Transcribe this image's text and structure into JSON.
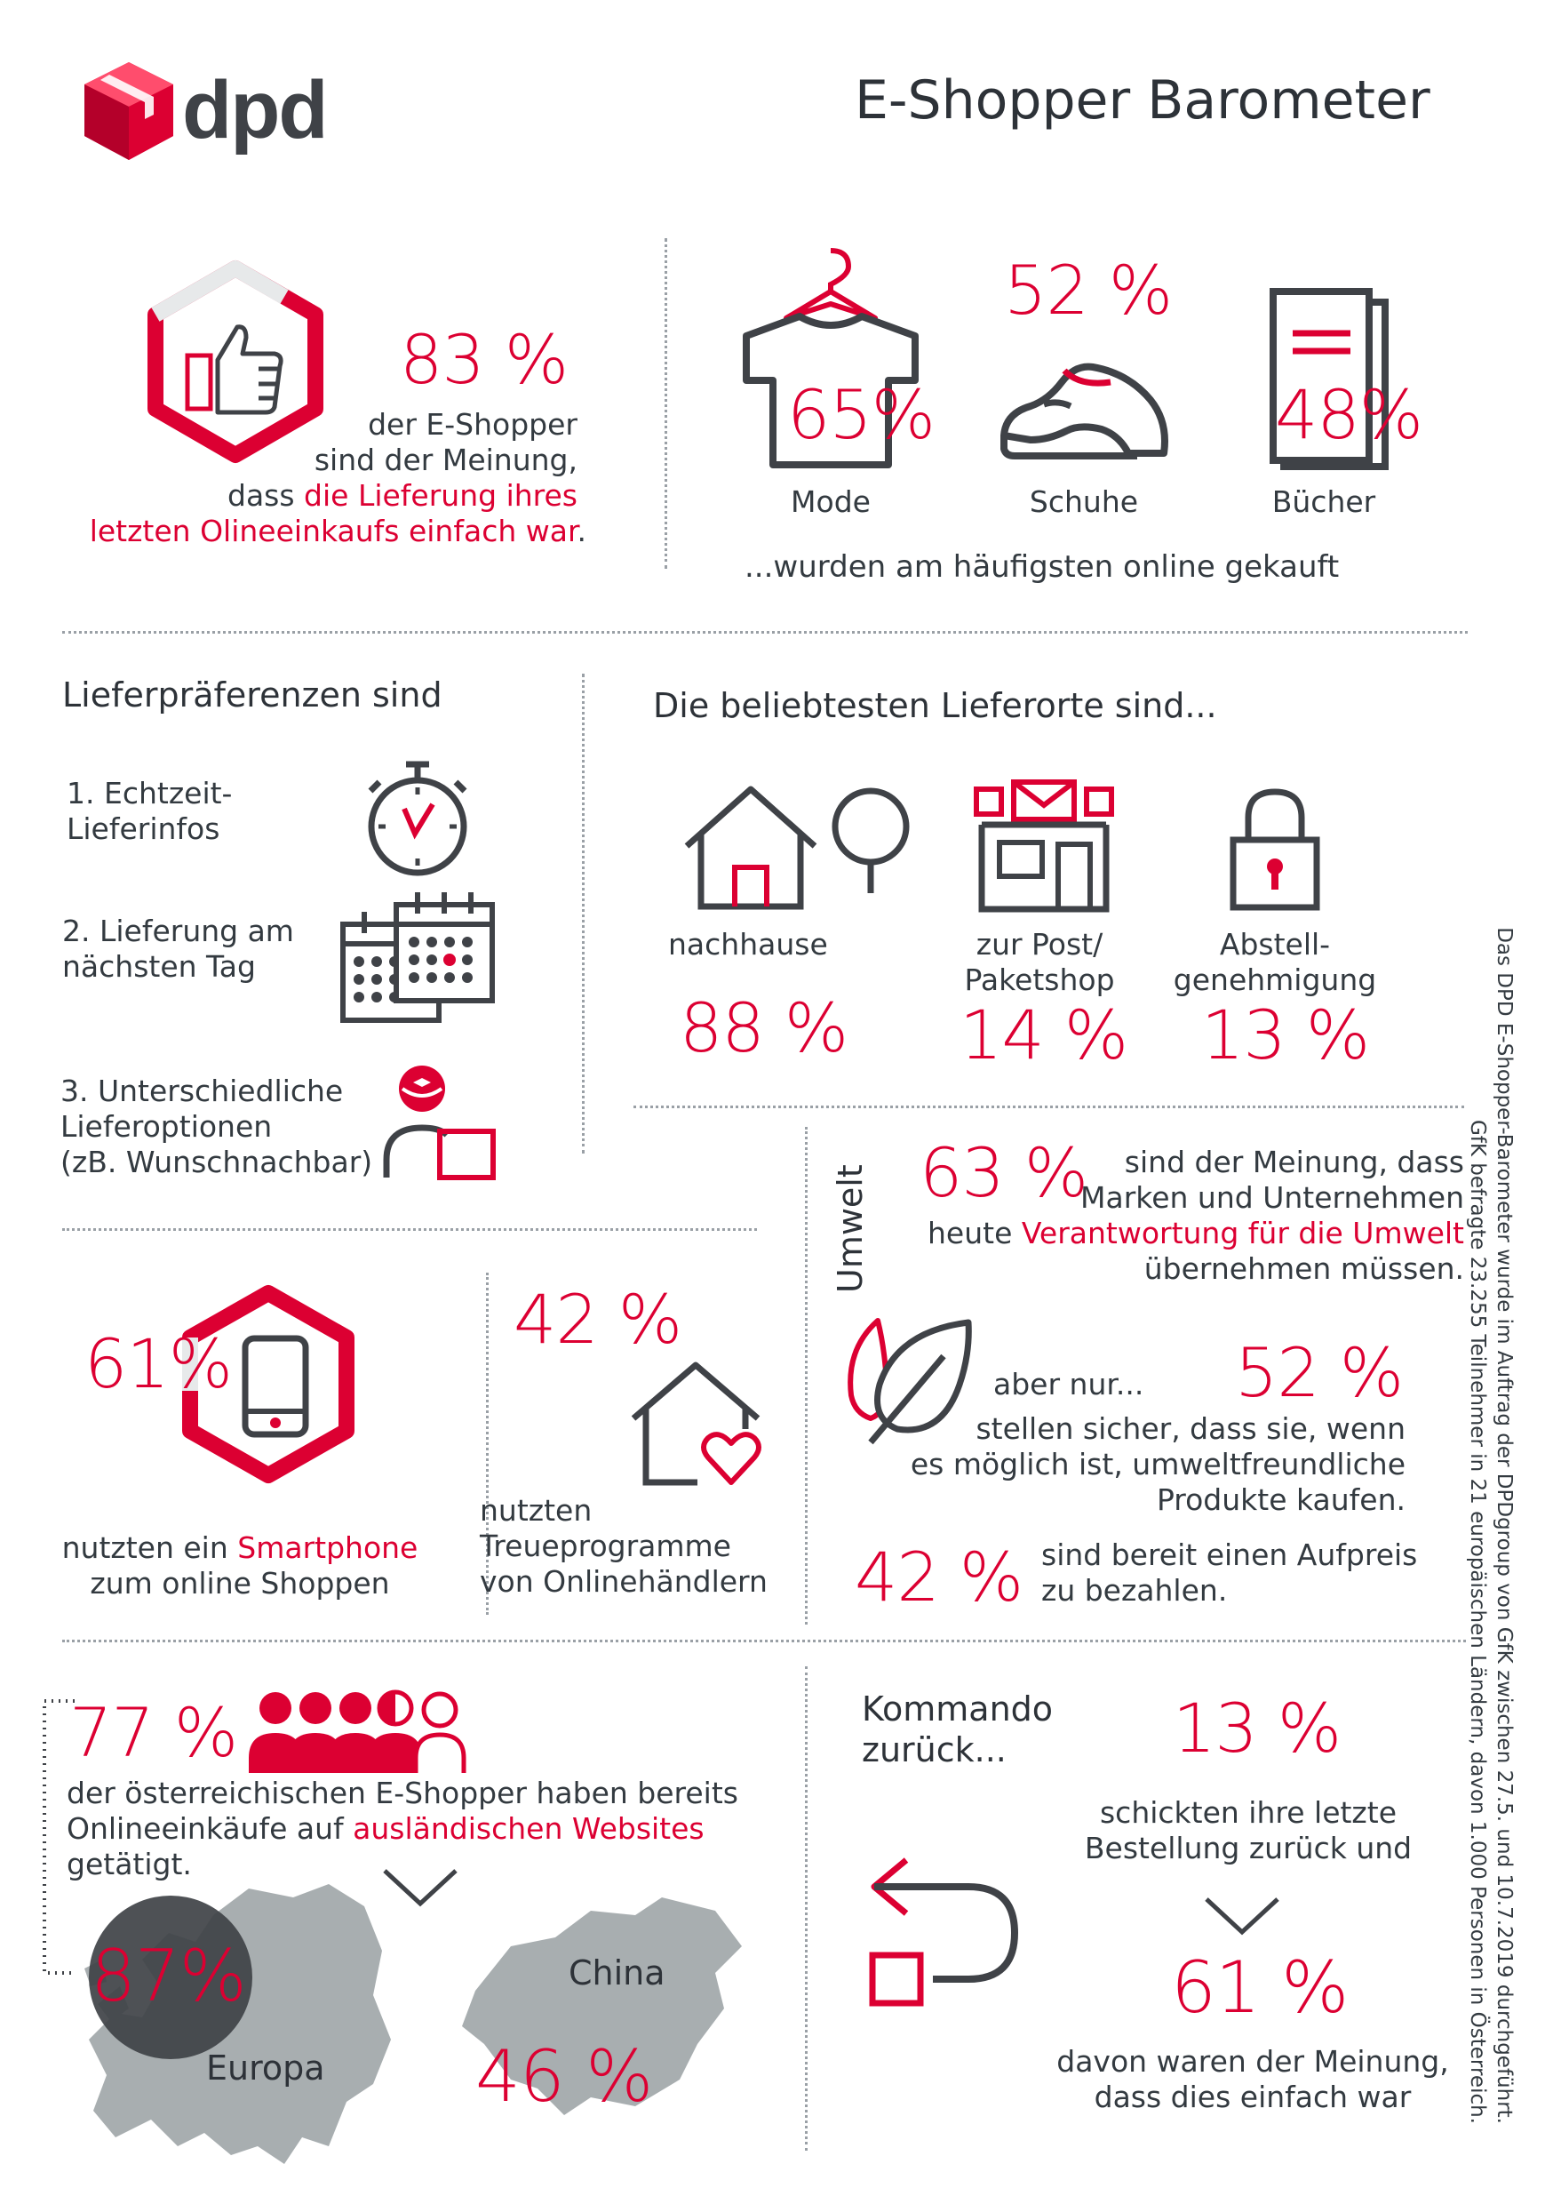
{
  "brand": {
    "logo_text": "dpd",
    "title": "E-Shopper Barometer"
  },
  "colors": {
    "accent": "#dc0032",
    "text": "#333a40",
    "map": "#a8aeb0",
    "dark": "#3f4247"
  },
  "delivery_easy": {
    "percent": "83 %",
    "line1": "der E-Shopper",
    "line2": "sind der Meinung,",
    "line3_pre": "dass ",
    "line3_red": "die Lieferung ihres",
    "line4_red": "letzten Olineeinkaufs einfach war",
    "line4_post": "."
  },
  "categories": {
    "items": [
      {
        "label": "Mode",
        "percent": "65%"
      },
      {
        "label": "Schuhe",
        "percent": "52 %"
      },
      {
        "label": "Bücher",
        "percent": "48%"
      }
    ],
    "footer": "...wurden am häufigsten online gekauft"
  },
  "preferences": {
    "title": "Lieferpräferenzen sind",
    "item1_line1": "1. Echtzeit-",
    "item1_line2": "Lieferinfos",
    "item2_line1": "2. Lieferung am",
    "item2_line2": "nächsten Tag",
    "item3_line1": "3. Unterschiedliche",
    "item3_line2": "Lieferoptionen",
    "item3_line3": "(zB. Wunschnachbar)"
  },
  "places": {
    "title": "Die beliebtesten Lieferorte sind...",
    "home_label": "nachhause",
    "home_percent": "88 %",
    "post_label1": "zur Post/",
    "post_label2": "Paketshop",
    "post_percent": "14 %",
    "drop_label1": "Abstell-",
    "drop_label2": "genehmigung",
    "drop_percent": "13 %"
  },
  "smartphone": {
    "percent": "61%",
    "line1_pre": "nutzten ein ",
    "line1_red": "Smartphone",
    "line2": "zum online Shoppen"
  },
  "loyalty": {
    "percent": "42 %",
    "line1": "nutzten",
    "line2": "Treueprogramme",
    "line3": "von Onlinehändlern"
  },
  "environment": {
    "label": "Umwelt",
    "p1": "63 %",
    "t1_line1": "sind der Meinung, dass",
    "t1_line2": "Marken und Unternehmen",
    "t1_line3_pre": "heute ",
    "t1_line3_red": "Verantwortung für die Umwelt",
    "t1_line4": "übernehmen müssen.",
    "but": "aber nur...",
    "p2": "52 %",
    "t2_line1": "stellen sicher, dass sie, wenn",
    "t2_line2": "es möglich ist, umweltfreundliche",
    "t2_line3": "Produkte kaufen.",
    "p3": "42 %",
    "t3_line1": "sind bereit einen Aufpreis",
    "t3_line2": "zu bezahlen."
  },
  "foreign": {
    "percent": "77 %",
    "line1": "der österreichischen E-Shopper haben bereits",
    "line2_pre": "Onlineeinkäufe auf ",
    "line2_red": "ausländischen Websites",
    "line3": "getätigt.",
    "europe_label": "Europa",
    "europe_percent": "87%",
    "china_label": "China",
    "china_percent": "46 %"
  },
  "returns": {
    "title1": "Kommando",
    "title2": "zurück...",
    "percent1": "13 %",
    "line1": "schickten ihre letzte",
    "line2": "Bestellung zurück und",
    "percent2": "61 %",
    "line3": "davon waren der Meinung,",
    "line4": "dass dies einfach war"
  },
  "footnote": {
    "line1": "Das DPD E-Shopper-Barometer wurde im Auftrag der DPDgroup von GfK zwischen 27.5. und 10.7.2019 durchgeführt.",
    "line2": "GfK befragte 23.255 Teilnehmer in 21 europäischen Ländern, davon 1.000 Personen in Österreich."
  }
}
